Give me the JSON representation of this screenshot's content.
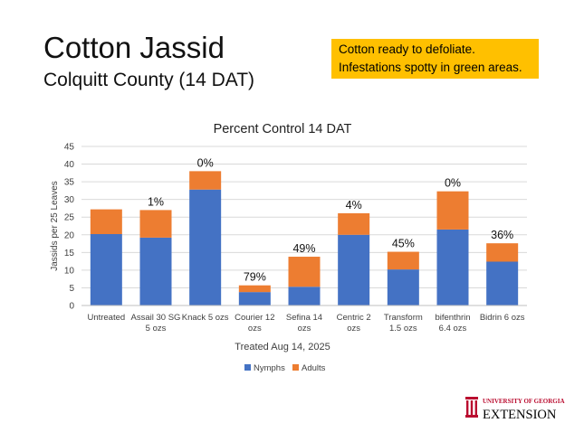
{
  "slide": {
    "title": "Cotton Jassid",
    "subtitle": "Colquitt County (14 DAT)",
    "note_lines": [
      "Cotton ready to defoliate.",
      "Infestations spotty in green areas."
    ],
    "note_color": "#ffc000"
  },
  "logo": {
    "line1": "UNIVERSITY OF GEORGIA",
    "line2": "EXTENSION",
    "color": "#ba0c2f"
  },
  "chart_data": {
    "type": "bar",
    "stacked": true,
    "title": "Percent Control 14 DAT",
    "xlabel": "Treated Aug 14, 2025",
    "ylabel": "Jassids per 25 Leaves",
    "ylim": [
      0,
      45
    ],
    "yticks": [
      0,
      5,
      10,
      15,
      20,
      25,
      30,
      35,
      40,
      45
    ],
    "grid": true,
    "legend_position": "bottom",
    "categories": [
      [
        "Untreated"
      ],
      [
        "Assail 30 SG",
        "5 ozs"
      ],
      [
        "Knack 5 ozs"
      ],
      [
        "Courier 12",
        "ozs"
      ],
      [
        "Sefina 14",
        "ozs"
      ],
      [
        "Centric 2",
        "ozs"
      ],
      [
        "Transform",
        "1.5 ozs"
      ],
      [
        "bifenthrin",
        "6.4 ozs"
      ],
      [
        "Bidrin 6 ozs"
      ]
    ],
    "series": [
      {
        "name": "Nymphs",
        "color": "#4472c4",
        "values": [
          20.2,
          19.2,
          32.8,
          3.8,
          5.3,
          20.0,
          10.2,
          21.5,
          12.4
        ]
      },
      {
        "name": "Adults",
        "color": "#ed7d31",
        "values": [
          7.0,
          7.8,
          5.2,
          1.9,
          8.5,
          6.1,
          5.0,
          10.8,
          5.2
        ]
      }
    ],
    "annotations": [
      "",
      "1%",
      "0%",
      "79%",
      "49%",
      "4%",
      "45%",
      "0%",
      "36%"
    ]
  }
}
